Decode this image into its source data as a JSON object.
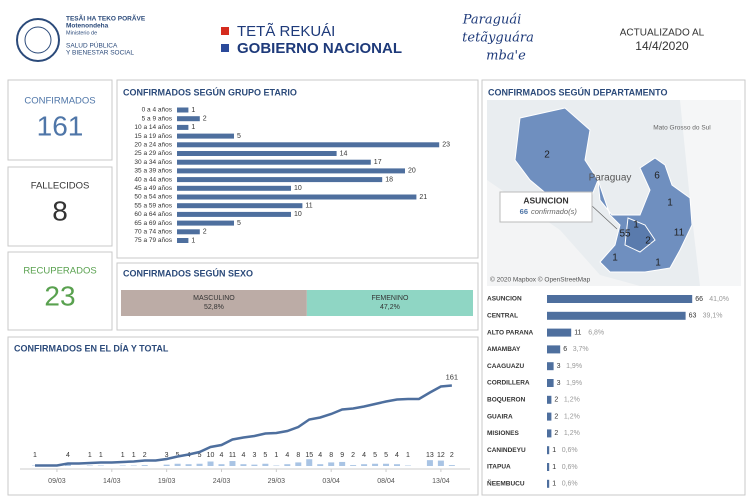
{
  "header": {
    "ministry_top": "TESÃI HA TEKO PORÃVE",
    "ministry_sub": "Motenondeha",
    "ministry_label": "Ministerio de",
    "ministry_name_1": "SALUD PÚBLICA",
    "ministry_name_2": "Y BIENESTAR SOCIAL",
    "gov_1": "TETÃ REKUÁI",
    "gov_2": "GOBIERNO NACIONAL",
    "slogan": [
      "Paraguái",
      "tetãyguára",
      "mba'e"
    ],
    "updated_label": "ACTUALIZADO AL",
    "updated_date": "14/4/2020"
  },
  "kpis": [
    {
      "label": "CONFIRMADOS",
      "value": 161,
      "color": "#4f76a8"
    },
    {
      "label": "FALLECIDOS",
      "value": 8,
      "color": "#333333"
    },
    {
      "label": "RECUPERADOS",
      "value": 23,
      "color": "#59a14f"
    }
  ],
  "map": {
    "place_labels": [
      "Paraguay",
      "Mato Grosso do Sul"
    ],
    "count_labels": [
      2,
      6,
      1,
      11,
      55,
      2,
      1,
      1,
      1
    ],
    "tooltip": {
      "name": "ASUNCION",
      "count": 66,
      "unit": "confirmado(s)"
    },
    "attribution": "© 2020 Mapbox © OpenStreetMap"
  },
  "chart_data": [
    {
      "type": "bar",
      "orientation": "horizontal",
      "title": "CONFIRMADOS SEGÚN GRUPO ETARIO",
      "color": "#4e6f9e",
      "categories": [
        "0 a 4 años",
        "5 a 9 años",
        "10 a 14 años",
        "15 a 19 años",
        "20 a 24 años",
        "25 a 29 años",
        "30 a 34 años",
        "35 a 39 años",
        "40 a 44 años",
        "45 a 49 años",
        "50 a 54 años",
        "55 a 59 años",
        "60 a 64 años",
        "65 a 69 años",
        "70 a 74 años",
        "75 a 79 años"
      ],
      "values": [
        1,
        2,
        1,
        5,
        23,
        14,
        17,
        20,
        18,
        10,
        21,
        11,
        10,
        5,
        2,
        1
      ]
    },
    {
      "type": "stacked_bar",
      "title": "CONFIRMADOS SEGÚN SEXO",
      "categories": [
        "MASCULINO",
        "FEMENINO"
      ],
      "values": [
        52.8,
        47.2
      ],
      "value_labels": [
        "52,8%",
        "47,2%"
      ],
      "colors": [
        "#bcaca6",
        "#8fd6c4"
      ]
    },
    {
      "type": "combo",
      "title": "CONFIRMADOS EN EL DÍA Y TOTAL",
      "x": [
        "07/03",
        "08/03",
        "09/03",
        "10/03",
        "11/03",
        "12/03",
        "13/03",
        "14/03",
        "15/03",
        "16/03",
        "17/03",
        "18/03",
        "19/03",
        "20/03",
        "21/03",
        "22/03",
        "23/03",
        "24/03",
        "25/03",
        "26/03",
        "27/03",
        "28/03",
        "29/03",
        "30/03",
        "31/03",
        "01/04",
        "02/04",
        "03/04",
        "04/04",
        "05/04",
        "06/04",
        "07/04",
        "08/04",
        "09/04",
        "10/04",
        "11/04",
        "12/04",
        "13/04",
        "14/04"
      ],
      "xticks": [
        "09/03",
        "14/03",
        "19/03",
        "24/03",
        "29/03",
        "03/04",
        "08/04",
        "13/04"
      ],
      "series": [
        {
          "type": "bar",
          "color": "#a9c4e4",
          "values": [
            1,
            null,
            null,
            4,
            null,
            1,
            1,
            null,
            1,
            1,
            2,
            null,
            3,
            5,
            4,
            5,
            10,
            4,
            11,
            4,
            3,
            5,
            1,
            4,
            8,
            15,
            4,
            8,
            9,
            2,
            4,
            5,
            5,
            4,
            1,
            null,
            13,
            12,
            2
          ]
        },
        {
          "type": "line",
          "color": "#4e6f9e",
          "values": [
            1,
            1,
            1,
            5,
            5,
            6,
            7,
            7,
            8,
            9,
            11,
            11,
            14,
            19,
            23,
            28,
            38,
            42,
            53,
            57,
            60,
            65,
            66,
            70,
            78,
            93,
            97,
            104,
            113,
            115,
            119,
            124,
            129,
            133,
            134,
            134,
            147,
            159,
            161
          ]
        }
      ]
    },
    {
      "type": "bar",
      "orientation": "horizontal",
      "title": "CONFIRMADOS SEGÚN DEPARTAMENTO",
      "color": "#4e6f9e",
      "categories": [
        "ASUNCION",
        "CENTRAL",
        "ALTO PARANA",
        "AMAMBAY",
        "CAAGUAZU",
        "CORDILLERA",
        "BOQUERON",
        "GUAIRA",
        "MISIONES",
        "CANINDEYU",
        "ITAPUA",
        "ÑEEMBUCU"
      ],
      "values": [
        66,
        63,
        11,
        6,
        3,
        3,
        2,
        2,
        2,
        1,
        1,
        1
      ],
      "share_labels": [
        "41,0%",
        "39,1%",
        "6,8%",
        "3,7%",
        "1,9%",
        "1,9%",
        "1,2%",
        "1,2%",
        "1,2%",
        "0,6%",
        "0,6%",
        "0,6%"
      ]
    }
  ]
}
